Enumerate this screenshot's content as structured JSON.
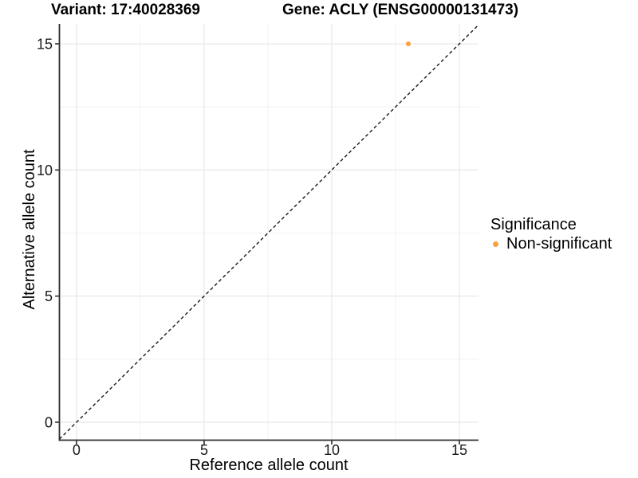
{
  "figure": {
    "title_left": "Variant: 17:40028369",
    "title_right": "Gene: ACLY (ENSG00000131473)"
  },
  "chart_data": {
    "type": "scatter",
    "title": "Variant: 17:40028369    Gene: ACLY (ENSG00000131473)",
    "xlabel": "Reference allele count",
    "ylabel": "Alternative allele count",
    "xlim": [
      -0.67,
      15.75
    ],
    "ylim": [
      -0.71,
      15.79
    ],
    "xticks": [
      0,
      5,
      10,
      15
    ],
    "xtick_labels": [
      "0",
      "5",
      "10",
      "15"
    ],
    "yticks": [
      0,
      5,
      10,
      15
    ],
    "ytick_labels": [
      "0",
      "5",
      "10",
      "15"
    ],
    "x_minor_ticks": [
      2.5,
      7.5,
      12.5
    ],
    "y_minor_ticks": [
      2.5,
      7.5,
      12.5
    ],
    "grid": true,
    "series": [
      {
        "name": "Non-significant",
        "color": "#F9A13A",
        "points": [
          {
            "x": 13,
            "y": 15
          }
        ]
      }
    ],
    "reference_line": {
      "type": "identity-diagonal",
      "style": "dashed",
      "color": "#1A1A1A"
    },
    "legend": {
      "title": "Significance",
      "position": "right",
      "items": [
        {
          "label": "Non-significant",
          "color": "#F9A13A"
        }
      ]
    },
    "style": {
      "background": "#FFFFFF",
      "axis_line_color": "#2B2B2B",
      "tick_label_color": "#1A1A1A",
      "grid_major_color": "#E6E6E6",
      "grid_minor_color": "#F2F2F2",
      "point_color": "#F9A13A"
    }
  }
}
